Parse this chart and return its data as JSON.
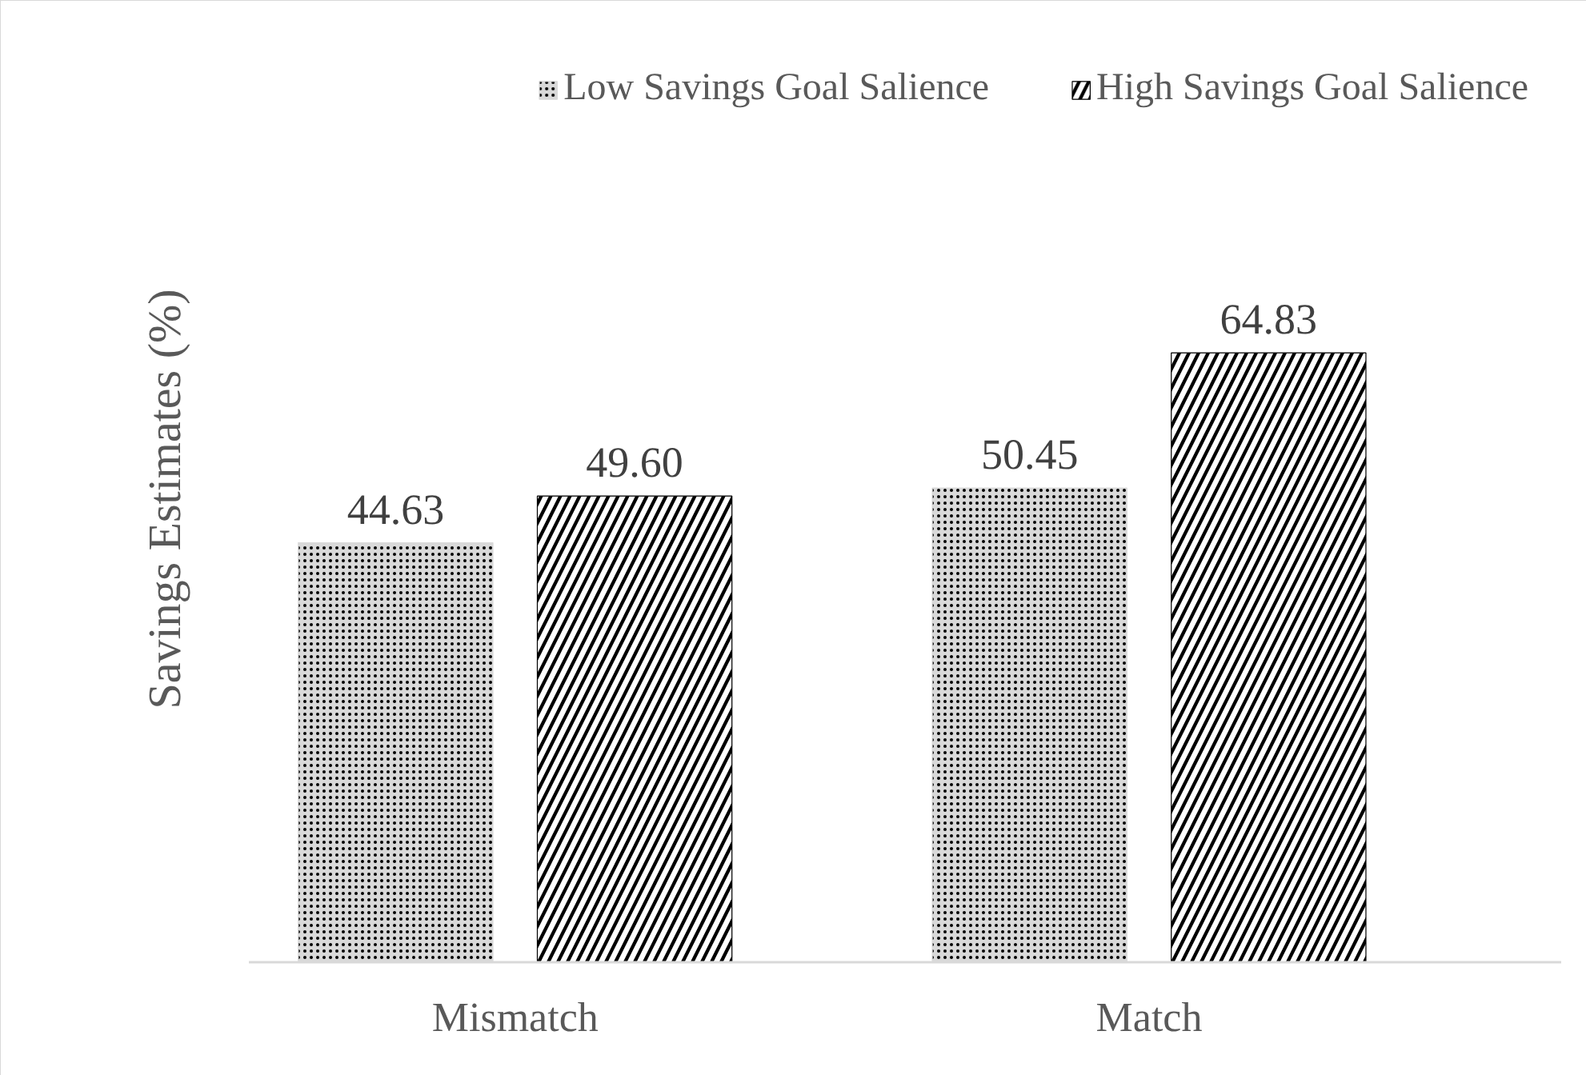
{
  "chart_data": {
    "type": "bar",
    "ylabel": "Savings Estimates (%)",
    "categories": [
      "Mismatch",
      "Match"
    ],
    "series": [
      {
        "name": "Low Savings Goal Salience",
        "color": "#d9d9d9",
        "values": [
          44.63,
          50.45
        ],
        "value_labels": [
          "44.63",
          "50.45"
        ]
      },
      {
        "name": "High Savings Goal Salience",
        "color": "#000000",
        "values": [
          49.6,
          64.83
        ],
        "value_labels": [
          "49.60",
          "64.83"
        ]
      }
    ],
    "legend": "top right",
    "tick_labels": "x"
  }
}
